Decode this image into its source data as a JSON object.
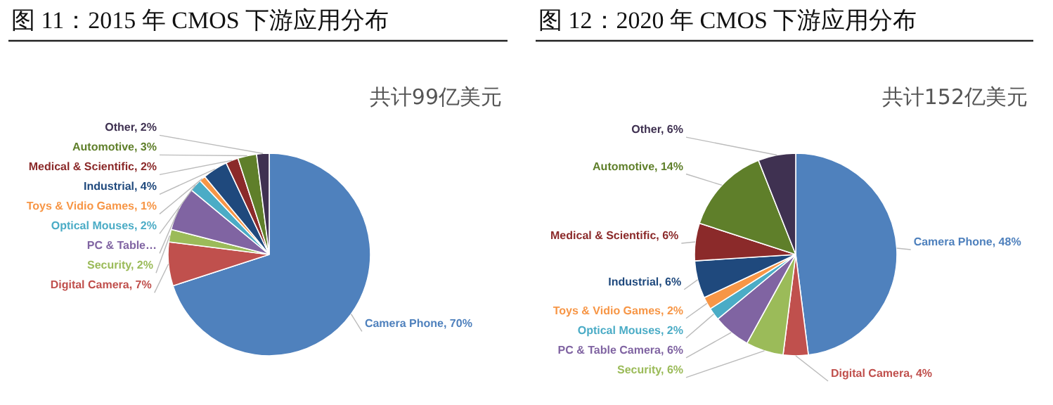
{
  "chart_data": [
    {
      "type": "pie",
      "title": "图 11：2015 年 CMOS 下游应用分布",
      "annotations": [
        "共计99亿美元"
      ],
      "categories": [
        "Camera Phone",
        "Digital Camera",
        "Security",
        "PC & Table…",
        "Optical Mouses",
        "Toys & Vidio Games",
        "Industrial",
        "Medical & Scientific",
        "Automotive",
        "Other"
      ],
      "values": [
        70,
        7,
        2,
        7,
        2,
        1,
        4,
        2,
        3,
        2
      ],
      "value_labels": [
        "70%",
        "7%",
        "2%",
        null,
        "2%",
        "1%",
        "4%",
        "2%",
        "3%",
        "2%"
      ],
      "colors": [
        "#4f81bd",
        "#c0504d",
        "#9bbb59",
        "#8064a2",
        "#4bacc6",
        "#f79646",
        "#1f497d",
        "#8b2a2a",
        "#5f7f2a",
        "#3f3151"
      ]
    },
    {
      "type": "pie",
      "title": "图 12：2020 年 CMOS 下游应用分布",
      "annotations": [
        "共计152亿美元"
      ],
      "categories": [
        "Camera Phone",
        "Digital Camera",
        "Security",
        "PC & Table Camera",
        "Optical Mouses",
        "Toys & Vidio Games",
        "Industrial",
        "Medical & Scientific",
        "Automotive",
        "Other"
      ],
      "values": [
        48,
        4,
        6,
        6,
        2,
        2,
        6,
        6,
        14,
        6
      ],
      "value_labels": [
        "48%",
        "4%",
        "6%",
        "6%",
        "2%",
        "2%",
        "6%",
        "6%",
        "14%",
        "6%"
      ],
      "colors": [
        "#4f81bd",
        "#c0504d",
        "#9bbb59",
        "#8064a2",
        "#4bacc6",
        "#f79646",
        "#1f497d",
        "#8b2a2a",
        "#5f7f2a",
        "#3f3151"
      ]
    }
  ]
}
